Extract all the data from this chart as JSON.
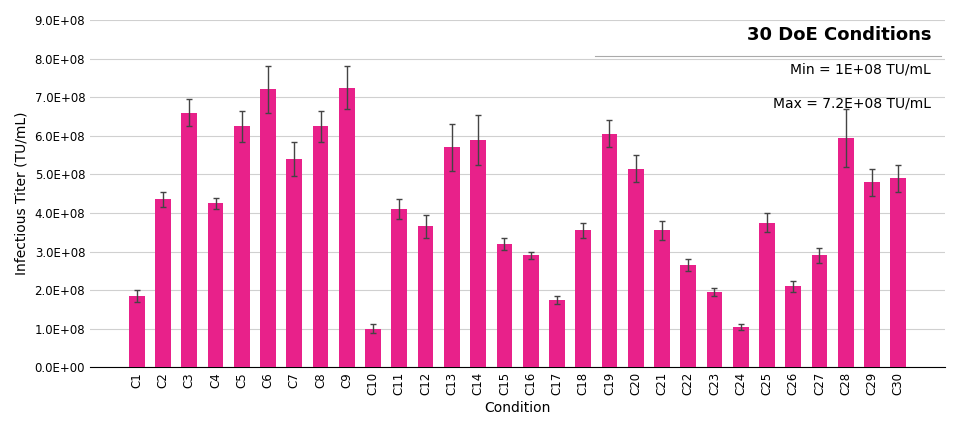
{
  "categories": [
    "C1",
    "C2",
    "C3",
    "C4",
    "C5",
    "C6",
    "C7",
    "C8",
    "C9",
    "C10",
    "C11",
    "C12",
    "C13",
    "C14",
    "C15",
    "C16",
    "C17",
    "C18",
    "C19",
    "C20",
    "C21",
    "C22",
    "C23",
    "C24",
    "C25",
    "C26",
    "C27",
    "C28",
    "C29",
    "C30"
  ],
  "values": [
    185000000.0,
    435000000.0,
    660000000.0,
    425000000.0,
    625000000.0,
    720000000.0,
    540000000.0,
    625000000.0,
    725000000.0,
    100000000.0,
    410000000.0,
    365000000.0,
    570000000.0,
    590000000.0,
    320000000.0,
    290000000.0,
    175000000.0,
    355000000.0,
    605000000.0,
    515000000.0,
    355000000.0,
    265000000.0,
    195000000.0,
    105000000.0,
    375000000.0,
    210000000.0,
    290000000.0,
    595000000.0,
    480000000.0,
    490000000.0
  ],
  "errors": [
    15000000.0,
    20000000.0,
    35000000.0,
    15000000.0,
    40000000.0,
    60000000.0,
    45000000.0,
    40000000.0,
    55000000.0,
    12000000.0,
    25000000.0,
    30000000.0,
    60000000.0,
    65000000.0,
    15000000.0,
    10000000.0,
    10000000.0,
    20000000.0,
    35000000.0,
    35000000.0,
    25000000.0,
    15000000.0,
    10000000.0,
    8000000.0,
    25000000.0,
    15000000.0,
    20000000.0,
    75000000.0,
    35000000.0,
    35000000.0
  ],
  "bar_color": "#E8218A",
  "error_color": "#444444",
  "title": "30 DoE Conditions",
  "xlabel": "Condition",
  "ylabel": "Infectious Titer (TU/mL)",
  "ylim": [
    0,
    900000000.0
  ],
  "yticks": [
    0,
    100000000.0,
    200000000.0,
    300000000.0,
    400000000.0,
    500000000.0,
    600000000.0,
    700000000.0,
    800000000.0,
    900000000.0
  ],
  "ytick_labels": [
    "0.0E+00",
    "1.0E+08",
    "2.0E+08",
    "3.0E+08",
    "4.0E+08",
    "5.0E+08",
    "6.0E+08",
    "7.0E+08",
    "8.0E+08",
    "9.0E+08"
  ],
  "annotation_line1": "Min = 1E+08 TU/mL",
  "annotation_line2": "Max = 7.2E+08 TU/mL",
  "title_fontsize": 13,
  "label_fontsize": 10,
  "tick_fontsize": 8.5,
  "annotation_fontsize": 10,
  "background_color": "#ffffff",
  "grid_color": "#d0d0d0"
}
